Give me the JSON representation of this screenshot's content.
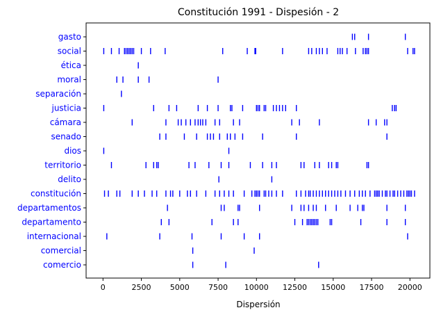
{
  "chart_data": {
    "type": "scatter",
    "title": "Constitución 1991 - Dispesión - 2",
    "xlabel": "Dispersión",
    "ylabel": "",
    "xlim": [
      -1100,
      21300
    ],
    "x_ticks": [
      0,
      2500,
      5000,
      7500,
      10000,
      12500,
      15000,
      17500,
      20000
    ],
    "x_tick_labels": [
      "0",
      "2500",
      "5000",
      "7500",
      "10000",
      "12500",
      "15000",
      "17500",
      "20000"
    ],
    "marker": "|",
    "color": "#0000ff",
    "label_color": "#0000ff",
    "grid": false,
    "words": [
      {
        "word": "gasto",
        "positions": [
          16250,
          16400,
          17300,
          19700
        ]
      },
      {
        "word": "social",
        "positions": [
          50,
          550,
          1050,
          1400,
          1500,
          1600,
          1700,
          1800,
          1900,
          2000,
          2500,
          3100,
          4050,
          7800,
          9400,
          9900,
          9950,
          11700,
          13400,
          13600,
          13900,
          14100,
          14300,
          14600,
          15300,
          15450,
          15600,
          15900,
          16450,
          16950,
          17100,
          17200,
          17300,
          19850,
          20200,
          20300
        ]
      },
      {
        "word": "ética",
        "positions": [
          2300
        ]
      },
      {
        "word": "moral",
        "positions": [
          900,
          1300,
          2300,
          3000,
          7500
        ]
      },
      {
        "word": "separación",
        "positions": [
          1200
        ]
      },
      {
        "word": "justicia",
        "positions": [
          50,
          3300,
          4300,
          4800,
          6200,
          6800,
          7500,
          8300,
          8400,
          9100,
          10000,
          10100,
          10200,
          10500,
          10600,
          11100,
          11300,
          11500,
          11700,
          11900,
          12600,
          18850,
          19000,
          19100
        ]
      },
      {
        "word": "cámara",
        "positions": [
          1900,
          4100,
          4900,
          5100,
          5400,
          5700,
          6000,
          6200,
          6350,
          6500,
          6700,
          7300,
          7600,
          8500,
          8900,
          12300,
          12800,
          14100,
          17300,
          17800,
          18350,
          18500
        ]
      },
      {
        "word": "senado",
        "positions": [
          3700,
          4100,
          5300,
          6100,
          6800,
          7000,
          7200,
          7600,
          8100,
          8300,
          8600,
          9100,
          10400,
          12600,
          18500
        ]
      },
      {
        "word": "dios",
        "positions": [
          50,
          8200
        ]
      },
      {
        "word": "territorio",
        "positions": [
          550,
          2800,
          3300,
          3500,
          3600,
          5600,
          6000,
          6900,
          7700,
          8200,
          9600,
          10400,
          11000,
          11300,
          12900,
          13100,
          13800,
          14100,
          14700,
          14900,
          15200,
          15300,
          17200,
          17300
        ]
      },
      {
        "word": "delito",
        "positions": [
          7550,
          11000
        ]
      },
      {
        "word": "constitución",
        "positions": [
          100,
          350,
          900,
          1100,
          1900,
          2300,
          2700,
          3200,
          3500,
          4100,
          4400,
          4550,
          5000,
          5500,
          5700,
          6100,
          6700,
          7300,
          7600,
          7900,
          8200,
          8500,
          9200,
          9700,
          9900,
          10000,
          10100,
          10200,
          10500,
          10600,
          10800,
          11000,
          11300,
          11700,
          12600,
          12900,
          13200,
          13400,
          13500,
          13700,
          13900,
          14100,
          14300,
          14500,
          14700,
          14900,
          15100,
          15300,
          15500,
          15800,
          16100,
          16400,
          16700,
          16900,
          17100,
          17400,
          17700,
          17800,
          17900,
          18000,
          18200,
          18400,
          18500,
          18700,
          18900,
          19000,
          19200,
          19400,
          19600,
          19800,
          19900,
          20000,
          20100,
          20300
        ]
      },
      {
        "word": "departamentos",
        "positions": [
          4200,
          7700,
          7900,
          8800,
          8900,
          10200,
          12300,
          12900,
          13100,
          13400,
          13700,
          13900,
          14500,
          15200,
          16100,
          16600,
          16900,
          17000,
          18500,
          19700
        ]
      },
      {
        "word": "departamento",
        "positions": [
          3800,
          4300,
          7100,
          8500,
          8800,
          12500,
          13000,
          13300,
          13400,
          13500,
          13600,
          13700,
          13800,
          13900,
          14000,
          14800,
          14900,
          16800,
          18500,
          19700
        ]
      },
      {
        "word": "internacional",
        "positions": [
          250,
          3700,
          5800,
          7700,
          9200,
          10200,
          19850
        ]
      },
      {
        "word": "comercial",
        "positions": [
          5850,
          9850
        ]
      },
      {
        "word": "comercio",
        "positions": [
          5850,
          8000,
          14050
        ]
      }
    ]
  }
}
